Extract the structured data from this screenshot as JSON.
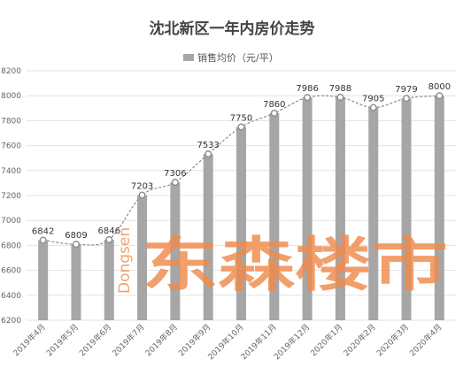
{
  "chart_data": {
    "type": "bar",
    "title": "沈北新区一年内房价走势",
    "legend": {
      "label": "销售均价（元/平）",
      "position": "top"
    },
    "categories": [
      "2019年4月",
      "2019年5月",
      "2019年6月",
      "2019年7月",
      "2019年8月",
      "2019年9月",
      "2019年10月",
      "2019年11月",
      "2019年12月",
      "2020年1月",
      "2020年2月",
      "2020年3月",
      "2020年4月"
    ],
    "series": [
      {
        "name": "销售均价（元/平）",
        "values": [
          6842,
          6809,
          6846,
          7203,
          7306,
          7533,
          7750,
          7860,
          7986,
          7988,
          7905,
          7979,
          8000
        ]
      }
    ],
    "trend_line": {
      "style": "dashed",
      "markers": "circle"
    },
    "ylim": [
      6200,
      8200
    ],
    "yticks": [
      6200,
      6400,
      6600,
      6800,
      7000,
      7200,
      7400,
      7600,
      7800,
      8000,
      8200
    ],
    "xlabel": "",
    "ylabel": "",
    "grid": true,
    "colors": {
      "bar": "#a6a6a6",
      "line": "#8c8c8c",
      "marker_fill": "#ffffff",
      "grid": "#e3e3e3"
    }
  },
  "watermark": {
    "text": "东森楼市",
    "latin": "Dongsen",
    "color": "#f08a4b"
  }
}
